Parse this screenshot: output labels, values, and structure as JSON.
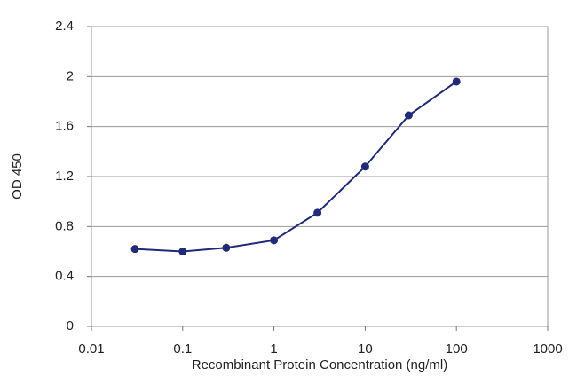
{
  "chart_data": {
    "type": "line",
    "x_label": "Recombinant Protein Concentration (ng/ml)",
    "y_label": "OD 450",
    "x": [
      0.03,
      0.1,
      0.3,
      1,
      3,
      10,
      30,
      100
    ],
    "values": [
      0.62,
      0.6,
      0.63,
      0.69,
      0.91,
      1.28,
      1.69,
      1.96
    ],
    "color": "#1f2a7a",
    "xscale": "log",
    "xlim": [
      0.01,
      1000
    ],
    "xticks": [
      0.01,
      0.1,
      1,
      10,
      100,
      1000
    ],
    "ylim": [
      0,
      2.4
    ],
    "yticks": [
      0,
      0.4,
      0.8,
      1.2,
      1.6,
      2,
      2.4
    ],
    "grid": true
  }
}
